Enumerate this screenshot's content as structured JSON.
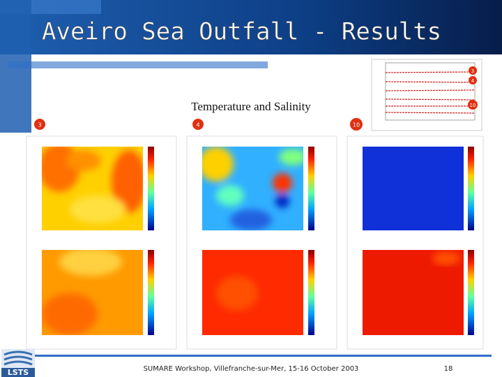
{
  "header": {
    "title": "Aveiro Sea Outfall - Results"
  },
  "subtitle": "Temperature and Salinity",
  "panel_badges": [
    "3",
    "4",
    "10"
  ],
  "inset": {
    "badges": [
      "3",
      "4",
      "10"
    ]
  },
  "footer": {
    "text": "SUMARE Workshop, Villefranche-sur-Mer, 15-16 October 2003",
    "page": "18"
  },
  "logo": {
    "text": "LSTS"
  }
}
